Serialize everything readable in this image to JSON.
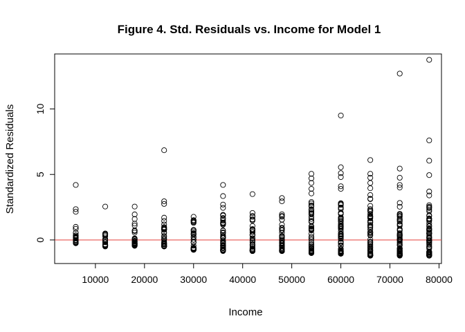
{
  "chart_data": {
    "type": "scatter",
    "title": "Figure 4. Std. Residuals vs. Income for Model 1",
    "xlabel": "Income",
    "ylabel": "Standardized Residuals",
    "xlim": [
      1700,
      80500
    ],
    "ylim": [
      -1.8,
      14.2
    ],
    "x_ticks": [
      10000,
      20000,
      30000,
      40000,
      50000,
      60000,
      70000,
      80000
    ],
    "y_ticks": [
      0,
      5,
      10
    ],
    "grid": false,
    "legend": "none",
    "reference_line": {
      "y": 0,
      "color": "#e8534f"
    },
    "point_color": "#000000",
    "groups": [
      {
        "x": 6000,
        "low": -0.25,
        "high": 0.7,
        "n": 24,
        "extra": [
          4.2,
          2.35,
          2.15,
          1.0,
          0.85
        ]
      },
      {
        "x": 12000,
        "low": -0.5,
        "high": 0.65,
        "n": 20,
        "extra": [
          2.55
        ]
      },
      {
        "x": 18000,
        "low": -0.45,
        "high": 0.95,
        "n": 26,
        "extra": [
          2.55,
          1.95,
          1.6,
          1.25,
          1.1
        ]
      },
      {
        "x": 24000,
        "low": -0.5,
        "high": 1.2,
        "n": 30,
        "extra": [
          6.85,
          2.95,
          2.75,
          1.7,
          1.45
        ]
      },
      {
        "x": 30000,
        "low": -0.75,
        "high": 1.95,
        "n": 40,
        "extra": []
      },
      {
        "x": 36000,
        "low": -0.85,
        "high": 1.95,
        "n": 44,
        "extra": [
          4.2,
          3.35,
          2.7,
          2.45
        ]
      },
      {
        "x": 42000,
        "low": -0.85,
        "high": 2.1,
        "n": 44,
        "extra": [
          3.5
        ]
      },
      {
        "x": 48000,
        "low": -0.85,
        "high": 2.0,
        "n": 44,
        "extra": [
          3.2,
          2.95
        ]
      },
      {
        "x": 54000,
        "low": -1.0,
        "high": 3.0,
        "n": 56,
        "extra": [
          5.05,
          4.7,
          4.35,
          3.9,
          3.55
        ]
      },
      {
        "x": 60000,
        "low": -1.05,
        "high": 3.2,
        "n": 64,
        "extra": [
          9.5,
          5.55,
          5.1,
          4.8,
          4.1,
          3.9
        ]
      },
      {
        "x": 66000,
        "low": -1.2,
        "high": 3.5,
        "n": 66,
        "extra": [
          6.1,
          5.05,
          4.75,
          4.35,
          3.95
        ]
      },
      {
        "x": 72000,
        "low": -1.2,
        "high": 3.1,
        "n": 64,
        "extra": [
          12.7,
          5.45,
          4.75,
          4.2,
          4.0
        ]
      },
      {
        "x": 78000,
        "low": -1.2,
        "high": 2.7,
        "n": 64,
        "extra": [
          13.75,
          7.6,
          6.05,
          4.95,
          3.7,
          3.4
        ]
      }
    ]
  }
}
